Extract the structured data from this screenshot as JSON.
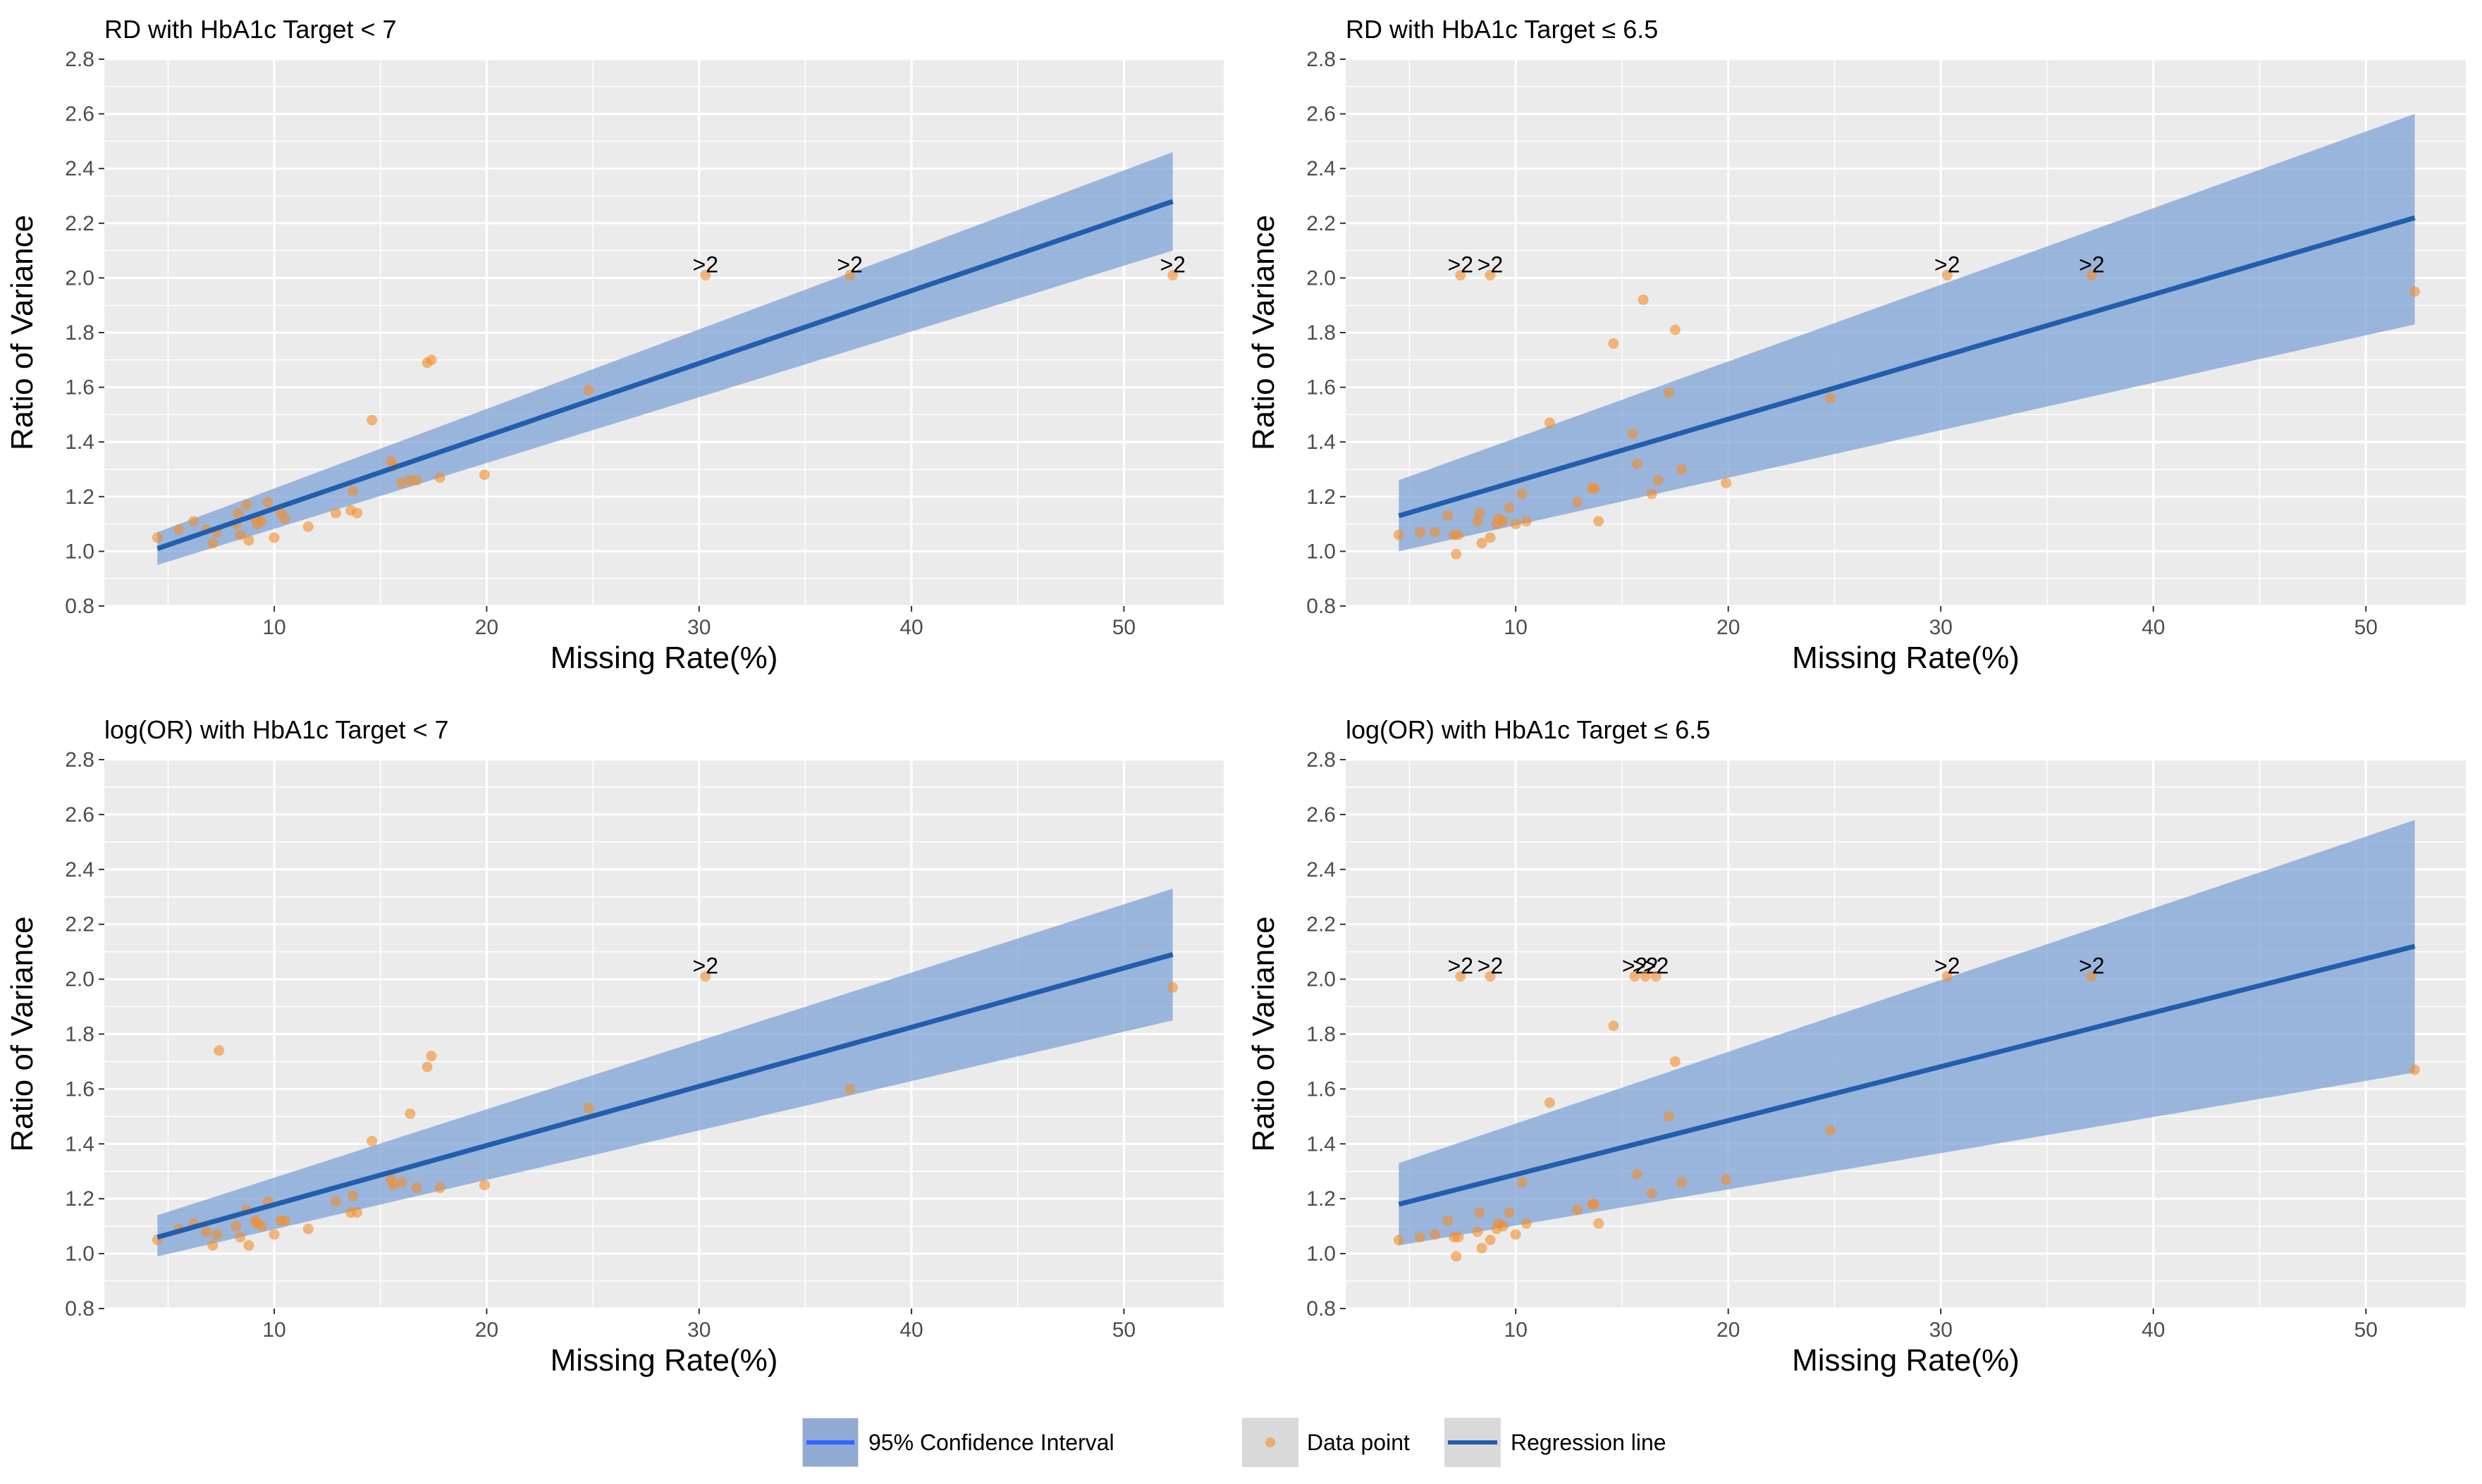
{
  "chart_data": [
    {
      "type": "scatter",
      "title": "RD with HbA1c Target < 7",
      "xlabel": "Missing Rate(%)",
      "ylabel": "Ratio of Variance",
      "xlim": [
        2.0,
        54.7
      ],
      "ylim": [
        0.8,
        2.8
      ],
      "xticks": [
        10,
        20,
        30,
        40,
        50
      ],
      "yticks": [
        0.8,
        1.0,
        1.2,
        1.4,
        1.6,
        1.8,
        2.0,
        2.2,
        2.4,
        2.6,
        2.8
      ],
      "grid": true,
      "regression": {
        "x": [
          4.5,
          52.3
        ],
        "y": [
          1.01,
          2.28
        ]
      },
      "confidence_band": {
        "x": [
          4.5,
          52.3
        ],
        "upper": [
          1.07,
          2.46
        ],
        "lower": [
          0.95,
          2.1
        ]
      },
      "capped": [
        {
          "x": 30.3,
          "y": 2.01,
          "label": ">2"
        },
        {
          "x": 37.1,
          "y": 2.01,
          "label": ">2"
        },
        {
          "x": 52.3,
          "y": 2.01,
          "label": ">2"
        }
      ],
      "points": [
        [
          4.5,
          1.05
        ],
        [
          5.5,
          1.08
        ],
        [
          6.2,
          1.11
        ],
        [
          6.8,
          1.08
        ],
        [
          7.1,
          1.03
        ],
        [
          7.3,
          1.07
        ],
        [
          8.2,
          1.1
        ],
        [
          8.3,
          1.14
        ],
        [
          8.4,
          1.06
        ],
        [
          8.7,
          1.17
        ],
        [
          8.8,
          1.04
        ],
        [
          9.1,
          1.12
        ],
        [
          9.2,
          1.1
        ],
        [
          9.4,
          1.11
        ],
        [
          9.7,
          1.18
        ],
        [
          10.0,
          1.05
        ],
        [
          10.3,
          1.14
        ],
        [
          10.5,
          1.12
        ],
        [
          11.6,
          1.09
        ],
        [
          12.9,
          1.14
        ],
        [
          13.6,
          1.15
        ],
        [
          13.7,
          1.22
        ],
        [
          13.9,
          1.14
        ],
        [
          14.6,
          1.48
        ],
        [
          15.5,
          1.33
        ],
        [
          15.6,
          1.31
        ],
        [
          16.0,
          1.25
        ],
        [
          16.4,
          1.26
        ],
        [
          16.7,
          1.26
        ],
        [
          17.2,
          1.69
        ],
        [
          17.4,
          1.7
        ],
        [
          17.8,
          1.27
        ],
        [
          19.9,
          1.28
        ],
        [
          24.8,
          1.59
        ]
      ]
    },
    {
      "type": "scatter",
      "title": "RD with HbA1c Target ≤ 6.5",
      "xlabel": "Missing Rate(%)",
      "ylabel": "Ratio of Variance",
      "xlim": [
        2.0,
        54.7
      ],
      "ylim": [
        0.8,
        2.8
      ],
      "xticks": [
        10,
        20,
        30,
        40,
        50
      ],
      "yticks": [
        0.8,
        1.0,
        1.2,
        1.4,
        1.6,
        1.8,
        2.0,
        2.2,
        2.4,
        2.6,
        2.8
      ],
      "grid": true,
      "regression": {
        "x": [
          4.5,
          52.3
        ],
        "y": [
          1.13,
          2.22
        ]
      },
      "confidence_band": {
        "x": [
          4.5,
          52.3
        ],
        "upper": [
          1.26,
          2.6
        ],
        "lower": [
          1.0,
          1.83
        ]
      },
      "capped": [
        {
          "x": 7.4,
          "y": 2.01,
          "label": ">2"
        },
        {
          "x": 8.8,
          "y": 2.01,
          "label": ">2"
        },
        {
          "x": 30.3,
          "y": 2.01,
          "label": ">2"
        },
        {
          "x": 37.1,
          "y": 2.01,
          "label": ">2"
        }
      ],
      "points": [
        [
          4.5,
          1.06
        ],
        [
          5.5,
          1.07
        ],
        [
          6.2,
          1.07
        ],
        [
          6.8,
          1.13
        ],
        [
          7.1,
          1.06
        ],
        [
          7.2,
          0.99
        ],
        [
          7.3,
          1.06
        ],
        [
          8.2,
          1.11
        ],
        [
          8.3,
          1.14
        ],
        [
          8.4,
          1.03
        ],
        [
          8.8,
          1.05
        ],
        [
          9.1,
          1.1
        ],
        [
          9.2,
          1.12
        ],
        [
          9.4,
          1.11
        ],
        [
          9.7,
          1.16
        ],
        [
          10.0,
          1.1
        ],
        [
          10.3,
          1.21
        ],
        [
          10.5,
          1.11
        ],
        [
          11.6,
          1.47
        ],
        [
          12.9,
          1.18
        ],
        [
          13.6,
          1.23
        ],
        [
          13.7,
          1.23
        ],
        [
          13.9,
          1.11
        ],
        [
          14.6,
          1.76
        ],
        [
          15.5,
          1.43
        ],
        [
          15.7,
          1.32
        ],
        [
          16.0,
          1.92
        ],
        [
          16.4,
          1.21
        ],
        [
          16.7,
          1.26
        ],
        [
          17.2,
          1.58
        ],
        [
          17.5,
          1.81
        ],
        [
          17.8,
          1.3
        ],
        [
          19.9,
          1.25
        ],
        [
          24.8,
          1.56
        ],
        [
          52.3,
          1.95
        ]
      ]
    },
    {
      "type": "scatter",
      "title": "log(OR) with HbA1c Target < 7",
      "xlabel": "Missing Rate(%)",
      "ylabel": "Ratio of Variance",
      "xlim": [
        2.0,
        54.7
      ],
      "ylim": [
        0.8,
        2.8
      ],
      "xticks": [
        10,
        20,
        30,
        40,
        50
      ],
      "yticks": [
        0.8,
        1.0,
        1.2,
        1.4,
        1.6,
        1.8,
        2.0,
        2.2,
        2.4,
        2.6,
        2.8
      ],
      "grid": true,
      "regression": {
        "x": [
          4.5,
          52.3
        ],
        "y": [
          1.06,
          2.09
        ]
      },
      "confidence_band": {
        "x": [
          4.5,
          52.3
        ],
        "upper": [
          1.14,
          2.33
        ],
        "lower": [
          0.99,
          1.85
        ]
      },
      "capped": [
        {
          "x": 30.3,
          "y": 2.01,
          "label": ">2"
        }
      ],
      "points": [
        [
          4.5,
          1.05
        ],
        [
          5.5,
          1.09
        ],
        [
          6.2,
          1.11
        ],
        [
          6.8,
          1.08
        ],
        [
          7.1,
          1.03
        ],
        [
          7.3,
          1.07
        ],
        [
          7.4,
          1.74
        ],
        [
          8.2,
          1.1
        ],
        [
          8.4,
          1.06
        ],
        [
          8.7,
          1.16
        ],
        [
          8.8,
          1.03
        ],
        [
          9.1,
          1.12
        ],
        [
          9.2,
          1.11
        ],
        [
          9.4,
          1.1
        ],
        [
          9.7,
          1.19
        ],
        [
          10.0,
          1.07
        ],
        [
          10.3,
          1.12
        ],
        [
          10.5,
          1.12
        ],
        [
          11.6,
          1.09
        ],
        [
          12.9,
          1.19
        ],
        [
          13.6,
          1.15
        ],
        [
          13.7,
          1.21
        ],
        [
          13.9,
          1.15
        ],
        [
          14.6,
          1.41
        ],
        [
          15.5,
          1.27
        ],
        [
          15.6,
          1.25
        ],
        [
          16.0,
          1.26
        ],
        [
          16.4,
          1.51
        ],
        [
          16.7,
          1.24
        ],
        [
          17.2,
          1.68
        ],
        [
          17.4,
          1.72
        ],
        [
          17.8,
          1.24
        ],
        [
          19.9,
          1.25
        ],
        [
          24.8,
          1.53
        ],
        [
          37.1,
          1.6
        ],
        [
          52.3,
          1.97
        ]
      ]
    },
    {
      "type": "scatter",
      "title": "log(OR) with HbA1c Target ≤ 6.5",
      "xlabel": "Missing Rate(%)",
      "ylabel": "Ratio of Variance",
      "xlim": [
        2.0,
        54.7
      ],
      "ylim": [
        0.8,
        2.8
      ],
      "xticks": [
        10,
        20,
        30,
        40,
        50
      ],
      "yticks": [
        0.8,
        1.0,
        1.2,
        1.4,
        1.6,
        1.8,
        2.0,
        2.2,
        2.4,
        2.6,
        2.8
      ],
      "grid": true,
      "regression": {
        "x": [
          4.5,
          52.3
        ],
        "y": [
          1.18,
          2.12
        ]
      },
      "confidence_band": {
        "x": [
          4.5,
          52.3
        ],
        "upper": [
          1.33,
          2.58
        ],
        "lower": [
          1.03,
          1.66
        ]
      },
      "capped": [
        {
          "x": 7.4,
          "y": 2.01,
          "label": ">2"
        },
        {
          "x": 8.8,
          "y": 2.01,
          "label": ">2"
        },
        {
          "x": 15.6,
          "y": 2.01,
          "label": ">2"
        },
        {
          "x": 16.1,
          "y": 2.01,
          "label": ">2"
        },
        {
          "x": 16.6,
          "y": 2.01,
          "label": ">2"
        },
        {
          "x": 30.3,
          "y": 2.01,
          "label": ">2"
        },
        {
          "x": 37.1,
          "y": 2.01,
          "label": ">2"
        }
      ],
      "points": [
        [
          4.5,
          1.05
        ],
        [
          5.5,
          1.06
        ],
        [
          6.2,
          1.07
        ],
        [
          6.8,
          1.12
        ],
        [
          7.1,
          1.06
        ],
        [
          7.2,
          0.99
        ],
        [
          7.3,
          1.06
        ],
        [
          8.2,
          1.08
        ],
        [
          8.3,
          1.15
        ],
        [
          8.4,
          1.02
        ],
        [
          8.8,
          1.05
        ],
        [
          9.1,
          1.09
        ],
        [
          9.2,
          1.11
        ],
        [
          9.4,
          1.1
        ],
        [
          9.7,
          1.15
        ],
        [
          10.0,
          1.07
        ],
        [
          10.3,
          1.26
        ],
        [
          10.5,
          1.11
        ],
        [
          11.6,
          1.55
        ],
        [
          12.9,
          1.16
        ],
        [
          13.6,
          1.18
        ],
        [
          13.7,
          1.18
        ],
        [
          13.9,
          1.11
        ],
        [
          14.6,
          1.83
        ],
        [
          15.7,
          1.29
        ],
        [
          16.4,
          1.22
        ],
        [
          17.2,
          1.5
        ],
        [
          17.5,
          1.7
        ],
        [
          17.8,
          1.26
        ],
        [
          19.9,
          1.27
        ],
        [
          24.8,
          1.45
        ],
        [
          52.3,
          1.67
        ]
      ]
    }
  ],
  "legend": {
    "position": "bottom",
    "items": [
      {
        "label": "95% Confidence Interval",
        "swatch_fill": "#90aad4",
        "line_color": "#3366ff"
      },
      {
        "label": "Data point",
        "point_color": "#f28e2b"
      },
      {
        "label": "Regression line",
        "line_color": "#215fad"
      }
    ]
  },
  "colors": {
    "panel_bg": "#ebebeb",
    "grid_major": "#ffffff",
    "band_fill": "#7a9fd6",
    "regression_line": "#215fad",
    "point_fill": "#f28e2b",
    "legend_key_bg": "#d9d9d9"
  }
}
